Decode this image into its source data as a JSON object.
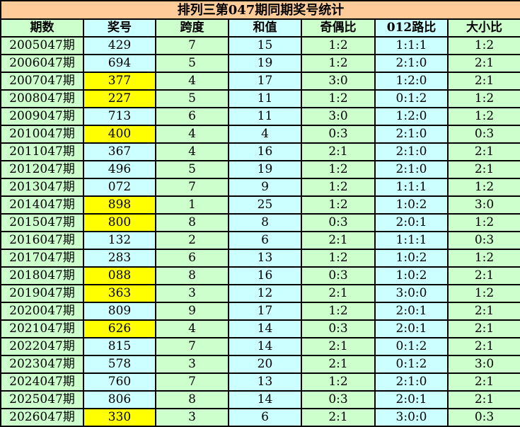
{
  "title": "排列三第047期同期奖号统计",
  "colors": {
    "title_bg": "#FFCC99",
    "green": "#CCFFCC",
    "cyan": "#CCFFFF",
    "highlight": "#FFFF00"
  },
  "headers": [
    "期数",
    "奖号",
    "跨度",
    "和值",
    "奇偶比",
    "012路比",
    "大小比"
  ],
  "rows": [
    {
      "cells": [
        "2005047期",
        "429",
        "7",
        "15",
        "1:2",
        "1:1:1",
        "1:2"
      ],
      "highlight": false
    },
    {
      "cells": [
        "2006047期",
        "694",
        "5",
        "19",
        "1:2",
        "2:1:0",
        "2:1"
      ],
      "highlight": false
    },
    {
      "cells": [
        "2007047期",
        "377",
        "4",
        "17",
        "3:0",
        "1:2:0",
        "2:1"
      ],
      "highlight": true
    },
    {
      "cells": [
        "2008047期",
        "227",
        "5",
        "11",
        "1:2",
        "0:1:2",
        "1:2"
      ],
      "highlight": true
    },
    {
      "cells": [
        "2009047期",
        "713",
        "6",
        "11",
        "3:0",
        "1:2:0",
        "1:2"
      ],
      "highlight": false
    },
    {
      "cells": [
        "2010047期",
        "400",
        "4",
        "4",
        "0:3",
        "2:1:0",
        "0:3"
      ],
      "highlight": true
    },
    {
      "cells": [
        "2011047期",
        "367",
        "4",
        "16",
        "2:1",
        "2:1:0",
        "2:1"
      ],
      "highlight": false
    },
    {
      "cells": [
        "2012047期",
        "496",
        "5",
        "19",
        "1:2",
        "2:1:0",
        "2:1"
      ],
      "highlight": false
    },
    {
      "cells": [
        "2013047期",
        "072",
        "7",
        "9",
        "1:2",
        "1:1:1",
        "1:2"
      ],
      "highlight": false
    },
    {
      "cells": [
        "2014047期",
        "898",
        "1",
        "25",
        "1:2",
        "1:0:2",
        "3:0"
      ],
      "highlight": true
    },
    {
      "cells": [
        "2015047期",
        "800",
        "8",
        "8",
        "0:3",
        "2:0:1",
        "1:2"
      ],
      "highlight": true
    },
    {
      "cells": [
        "2016047期",
        "132",
        "2",
        "6",
        "2:1",
        "1:1:1",
        "0:3"
      ],
      "highlight": false
    },
    {
      "cells": [
        "2017047期",
        "283",
        "6",
        "13",
        "1:2",
        "1:0:2",
        "1:2"
      ],
      "highlight": false
    },
    {
      "cells": [
        "2018047期",
        "088",
        "8",
        "16",
        "0:3",
        "1:0:2",
        "2:1"
      ],
      "highlight": true
    },
    {
      "cells": [
        "2019047期",
        "363",
        "3",
        "12",
        "2:1",
        "3:0:0",
        "1:2"
      ],
      "highlight": true
    },
    {
      "cells": [
        "2020047期",
        "809",
        "9",
        "17",
        "1:2",
        "2:0:1",
        "2:1"
      ],
      "highlight": false
    },
    {
      "cells": [
        "2021047期",
        "626",
        "4",
        "14",
        "0:3",
        "2:0:1",
        "2:1"
      ],
      "highlight": true
    },
    {
      "cells": [
        "2022047期",
        "815",
        "7",
        "14",
        "2:1",
        "0:1:2",
        "2:1"
      ],
      "highlight": false
    },
    {
      "cells": [
        "2023047期",
        "578",
        "3",
        "20",
        "2:1",
        "0:1:2",
        "3:0"
      ],
      "highlight": false
    },
    {
      "cells": [
        "2024047期",
        "760",
        "7",
        "13",
        "1:2",
        "2:1:0",
        "2:1"
      ],
      "highlight": false
    },
    {
      "cells": [
        "2025047期",
        "806",
        "8",
        "14",
        "0:3",
        "2:0:1",
        "2:1"
      ],
      "highlight": false
    },
    {
      "cells": [
        "2026047期",
        "330",
        "3",
        "6",
        "2:1",
        "3:0:0",
        "0:3"
      ],
      "highlight": true
    }
  ]
}
